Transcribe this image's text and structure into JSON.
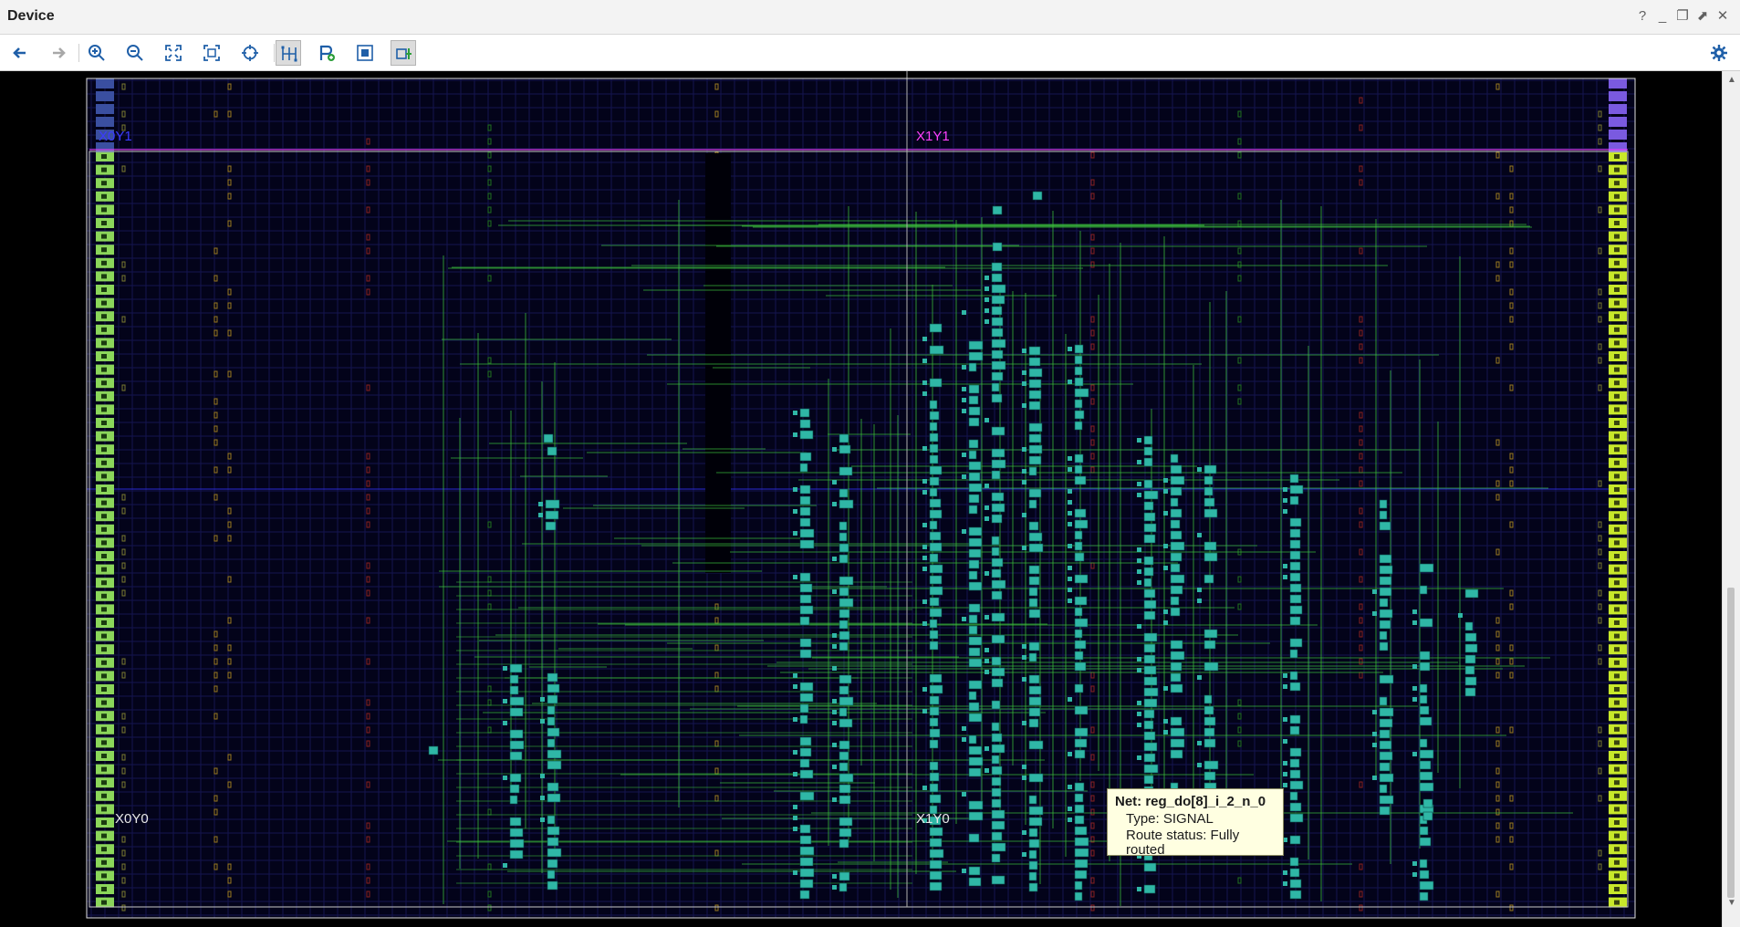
{
  "window": {
    "title": "Device"
  },
  "window_controls": {
    "help": "?",
    "minimize": "_",
    "restore": "❐",
    "maximize": "⬈",
    "close": "✕"
  },
  "toolbar": {
    "buttons": [
      {
        "name": "back-button",
        "icon": "arrow-left-icon"
      },
      {
        "name": "forward-button",
        "icon": "arrow-right-icon"
      },
      {
        "name": "zoom-in-button",
        "icon": "zoom-in-icon"
      },
      {
        "name": "zoom-out-button",
        "icon": "zoom-out-icon"
      },
      {
        "name": "zoom-fit-button",
        "icon": "fit-icon"
      },
      {
        "name": "zoom-to-selected-button",
        "icon": "zoom-selected-icon"
      },
      {
        "name": "auto-fit-selection-button",
        "icon": "crosshair-icon"
      },
      {
        "name": "routing-resources-button",
        "icon": "routing-icon"
      },
      {
        "name": "add-pblock-button",
        "icon": "pblock-add-icon"
      },
      {
        "name": "show-cells-button",
        "icon": "cells-icon"
      },
      {
        "name": "draw-pblock-button",
        "icon": "draw-pblock-icon"
      },
      {
        "name": "settings-button",
        "icon": "gear-icon"
      }
    ],
    "accent_color": "#1f5fa8"
  },
  "device": {
    "clock_regions": [
      {
        "label": "X0Y1",
        "color": "#3b3bff"
      },
      {
        "label": "X1Y1",
        "color": "#ff40ff"
      },
      {
        "label": "X0Y0",
        "color": "#e8e8e8"
      },
      {
        "label": "X1Y0",
        "color": "#e8e8e8"
      }
    ],
    "colors": {
      "background": "#000000",
      "grid": "#141450",
      "cell": "#2fb7a6",
      "net": "#3bbf3b",
      "io_left": "#8bd65a",
      "io_right": "#c8e82a"
    }
  },
  "tooltip": {
    "net_label": "Net: reg_do[8]_i_2_n_0",
    "type_label": "Type: SIGNAL",
    "route_status_label": "Route status: Fully routed"
  }
}
